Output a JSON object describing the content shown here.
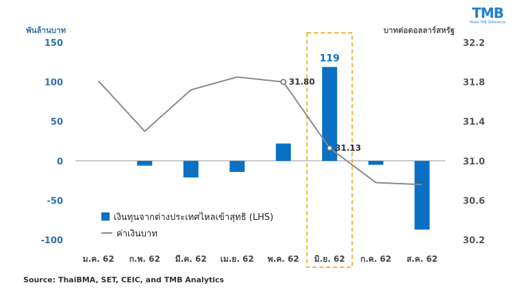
{
  "header": {
    "left_axis_unit": "พันล้านบาท",
    "right_axis_unit": "บาทต่อดอลลาร์สหรัฐ"
  },
  "logo": {
    "text": "TMB",
    "tagline": "Make THE Difference"
  },
  "legend": {
    "bar_label": "เงินทุนจากต่างประเทศไหลเข้าสุทธิ (LHS)",
    "line_label": "ค่าเงินบาท"
  },
  "source": "Source: ThaiBMA,  SET, CEIC, and TMB Analytics",
  "colors": {
    "bar": "#0a70c4",
    "line": "#888888",
    "highlight_box": "#f2b431",
    "left_tick": "#2f6fab",
    "right_tick": "#555555"
  },
  "chart_data": {
    "type": "bar+line",
    "categories": [
      "ม.ค. 62",
      "ก.พ. 62",
      "มี.ค. 62",
      "เม.ย. 62",
      "พ.ค. 62",
      "มิ.ย. 62",
      "ก.ค. 62",
      "ส.ค. 62"
    ],
    "series": [
      {
        "name": "เงินทุนจากต่างประเทศไหลเข้าสุทธิ (LHS)",
        "type": "bar",
        "axis": "left",
        "values": [
          0,
          -6,
          -21,
          -14,
          22,
          119,
          -5,
          -87
        ]
      },
      {
        "name": "ค่าเงินบาท",
        "type": "line",
        "axis": "right",
        "values": [
          31.81,
          31.3,
          31.72,
          31.85,
          31.8,
          31.13,
          30.78,
          30.76
        ]
      }
    ],
    "left_axis": {
      "ylim": [
        -100,
        150
      ],
      "ticks": [
        "150",
        "100",
        "50",
        "0",
        "-50",
        "-100"
      ]
    },
    "right_axis": {
      "ylim": [
        30.2,
        32.2
      ],
      "ticks": [
        "32.2",
        "31.8",
        "31.4",
        "31.0",
        "30.6",
        "30.2"
      ]
    },
    "data_labels": [
      {
        "series": 0,
        "index": 5,
        "text": "119"
      },
      {
        "series": 1,
        "index": 4,
        "text": "31.80"
      },
      {
        "series": 1,
        "index": 5,
        "text": "31.13"
      }
    ],
    "highlight_index": 5,
    "grid": false,
    "legend_position": "bottom-left"
  }
}
